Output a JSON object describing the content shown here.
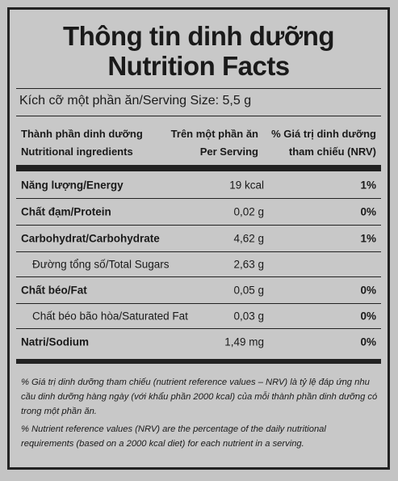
{
  "title": [
    "Thông tin dinh dưỡng",
    "Nutrition Facts"
  ],
  "serving_size": "Kích cỡ một phần ăn/Serving Size: 5,5 g",
  "table": {
    "header": [
      [
        "Thành phần dinh dưỡng",
        "Nutritional ingredients"
      ],
      [
        "Trên một phần ăn",
        "Per Serving"
      ],
      [
        "% Giá trị dinh dưỡng",
        "tham chiếu (NRV)"
      ]
    ],
    "rows": [
      {
        "cells": [
          "Năng lượng/Energy",
          "19 kcal",
          "1%"
        ]
      },
      {
        "cells": [
          "Chất đạm/Protein",
          "0,02 g",
          "0%"
        ]
      },
      {
        "cells": [
          "Carbohydrat/Carbohydrate",
          "4,62 g",
          "1%"
        ],
        "sub": [
          {
            "cells": [
              "Đường tổng số/Total Sugars",
              "2,63 g"
            ]
          }
        ]
      },
      {
        "cells": [
          "Chất béo/Fat",
          "0,05 g",
          "0%"
        ],
        "sub": [
          {
            "cells": [
              "Chất béo bão hòa/Saturated Fat",
              "0,03 g",
              "0%"
            ]
          }
        ]
      },
      {
        "cells": [
          "Natri/Sodium",
          "1,49 mg",
          "0%"
        ]
      }
    ]
  },
  "footnotes": [
    "% Giá trị dinh dưỡng tham chiếu (nutrient reference values – NRV) là tỷ lệ đáp ứng nhu cầu dinh dưỡng hàng ngày (với khẩu phần 2000 kcal) của mỗi thành phần dinh dưỡng có trong một phần ăn.",
    "% Nutrient reference values (NRV) are the percentage of the daily nutritional requirements (based on a 2000 kcal diet) for each nutrient in a serving."
  ]
}
